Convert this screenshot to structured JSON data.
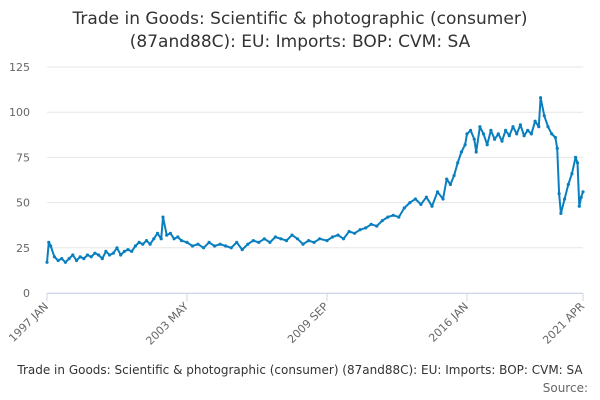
{
  "title_line1": "Trade in Goods: Scientific & photographic (consumer)",
  "title_line2": "(87and88C): EU: Imports: BOP: CVM: SA",
  "footer_label": "Trade in Goods: Scientific & photographic (consumer) (87and88C): EU: Imports: BOP: CVM: SA",
  "source_label": "Source:",
  "colors": {
    "line": "#0a7fc0",
    "grid": "#e6e6e6",
    "axis": "#ccd6eb"
  },
  "chart_data": {
    "type": "line",
    "title": "Trade in Goods: Scientific & photographic (consumer) (87and88C): EU: Imports: BOP: CVM: SA",
    "xlabel": "",
    "ylabel": "",
    "x_ticks": [
      "1997 JAN",
      "2003 MAY",
      "2009 SEP",
      "2016 JAN",
      "2021 APR"
    ],
    "y_ticks": [
      0,
      25,
      50,
      75,
      100,
      125
    ],
    "ylim": [
      0,
      125
    ],
    "xlim": [
      "1997-01",
      "2021-04"
    ],
    "grid": true,
    "markers": true,
    "series": [
      {
        "points": [
          [
            "1997-01",
            17
          ],
          [
            "1997-02",
            28
          ],
          [
            "1997-03",
            26
          ],
          [
            "1997-05",
            20
          ],
          [
            "1997-07",
            18
          ],
          [
            "1997-09",
            19
          ],
          [
            "1997-11",
            17
          ],
          [
            "1998-01",
            19
          ],
          [
            "1998-03",
            21
          ],
          [
            "1998-05",
            18
          ],
          [
            "1998-07",
            20
          ],
          [
            "1998-09",
            19
          ],
          [
            "1998-11",
            21
          ],
          [
            "1999-01",
            20
          ],
          [
            "1999-03",
            22
          ],
          [
            "1999-05",
            21
          ],
          [
            "1999-07",
            19
          ],
          [
            "1999-09",
            23
          ],
          [
            "1999-11",
            21
          ],
          [
            "2000-01",
            22
          ],
          [
            "2000-03",
            25
          ],
          [
            "2000-05",
            21
          ],
          [
            "2000-07",
            23
          ],
          [
            "2000-09",
            24
          ],
          [
            "2000-11",
            23
          ],
          [
            "2001-01",
            26
          ],
          [
            "2001-03",
            28
          ],
          [
            "2001-05",
            27
          ],
          [
            "2001-07",
            29
          ],
          [
            "2001-09",
            27
          ],
          [
            "2001-11",
            30
          ],
          [
            "2002-01",
            33
          ],
          [
            "2002-03",
            30
          ],
          [
            "2002-04",
            42
          ],
          [
            "2002-06",
            32
          ],
          [
            "2002-08",
            33
          ],
          [
            "2002-10",
            30
          ],
          [
            "2002-12",
            31
          ],
          [
            "2003-02",
            29
          ],
          [
            "2003-05",
            28
          ],
          [
            "2003-08",
            26
          ],
          [
            "2003-11",
            27
          ],
          [
            "2004-02",
            25
          ],
          [
            "2004-05",
            28
          ],
          [
            "2004-08",
            26
          ],
          [
            "2004-11",
            27
          ],
          [
            "2005-02",
            26
          ],
          [
            "2005-05",
            25
          ],
          [
            "2005-08",
            28
          ],
          [
            "2005-11",
            24
          ],
          [
            "2006-02",
            27
          ],
          [
            "2006-05",
            29
          ],
          [
            "2006-08",
            28
          ],
          [
            "2006-11",
            30
          ],
          [
            "2007-02",
            28
          ],
          [
            "2007-05",
            31
          ],
          [
            "2007-08",
            30
          ],
          [
            "2007-11",
            29
          ],
          [
            "2008-02",
            32
          ],
          [
            "2008-05",
            30
          ],
          [
            "2008-08",
            27
          ],
          [
            "2008-11",
            29
          ],
          [
            "2009-02",
            28
          ],
          [
            "2009-05",
            30
          ],
          [
            "2009-09",
            29
          ],
          [
            "2009-12",
            31
          ],
          [
            "2010-03",
            32
          ],
          [
            "2010-06",
            30
          ],
          [
            "2010-09",
            34
          ],
          [
            "2010-12",
            33
          ],
          [
            "2011-03",
            35
          ],
          [
            "2011-06",
            36
          ],
          [
            "2011-09",
            38
          ],
          [
            "2011-12",
            37
          ],
          [
            "2012-03",
            40
          ],
          [
            "2012-06",
            42
          ],
          [
            "2012-09",
            43
          ],
          [
            "2012-12",
            42
          ],
          [
            "2013-03",
            47
          ],
          [
            "2013-06",
            50
          ],
          [
            "2013-09",
            52
          ],
          [
            "2013-12",
            49
          ],
          [
            "2014-03",
            53
          ],
          [
            "2014-06",
            48
          ],
          [
            "2014-09",
            56
          ],
          [
            "2014-12",
            52
          ],
          [
            "2015-02",
            63
          ],
          [
            "2015-04",
            60
          ],
          [
            "2015-06",
            65
          ],
          [
            "2015-08",
            72
          ],
          [
            "2015-10",
            78
          ],
          [
            "2015-12",
            82
          ],
          [
            "2016-01",
            88
          ],
          [
            "2016-03",
            90
          ],
          [
            "2016-05",
            85
          ],
          [
            "2016-06",
            78
          ],
          [
            "2016-08",
            92
          ],
          [
            "2016-10",
            88
          ],
          [
            "2016-12",
            82
          ],
          [
            "2017-02",
            90
          ],
          [
            "2017-04",
            85
          ],
          [
            "2017-06",
            88
          ],
          [
            "2017-08",
            84
          ],
          [
            "2017-10",
            90
          ],
          [
            "2017-12",
            87
          ],
          [
            "2018-02",
            92
          ],
          [
            "2018-04",
            88
          ],
          [
            "2018-06",
            93
          ],
          [
            "2018-08",
            87
          ],
          [
            "2018-10",
            90
          ],
          [
            "2018-12",
            88
          ],
          [
            "2019-02",
            95
          ],
          [
            "2019-04",
            92
          ],
          [
            "2019-05",
            108
          ],
          [
            "2019-07",
            98
          ],
          [
            "2019-09",
            92
          ],
          [
            "2019-11",
            88
          ],
          [
            "2020-01",
            86
          ],
          [
            "2020-02",
            80
          ],
          [
            "2020-03",
            55
          ],
          [
            "2020-04",
            44
          ],
          [
            "2020-06",
            52
          ],
          [
            "2020-08",
            60
          ],
          [
            "2020-10",
            66
          ],
          [
            "2020-12",
            75
          ],
          [
            "2021-01",
            72
          ],
          [
            "2021-02",
            48
          ],
          [
            "2021-03",
            53
          ],
          [
            "2021-04",
            56
          ]
        ]
      }
    ]
  }
}
